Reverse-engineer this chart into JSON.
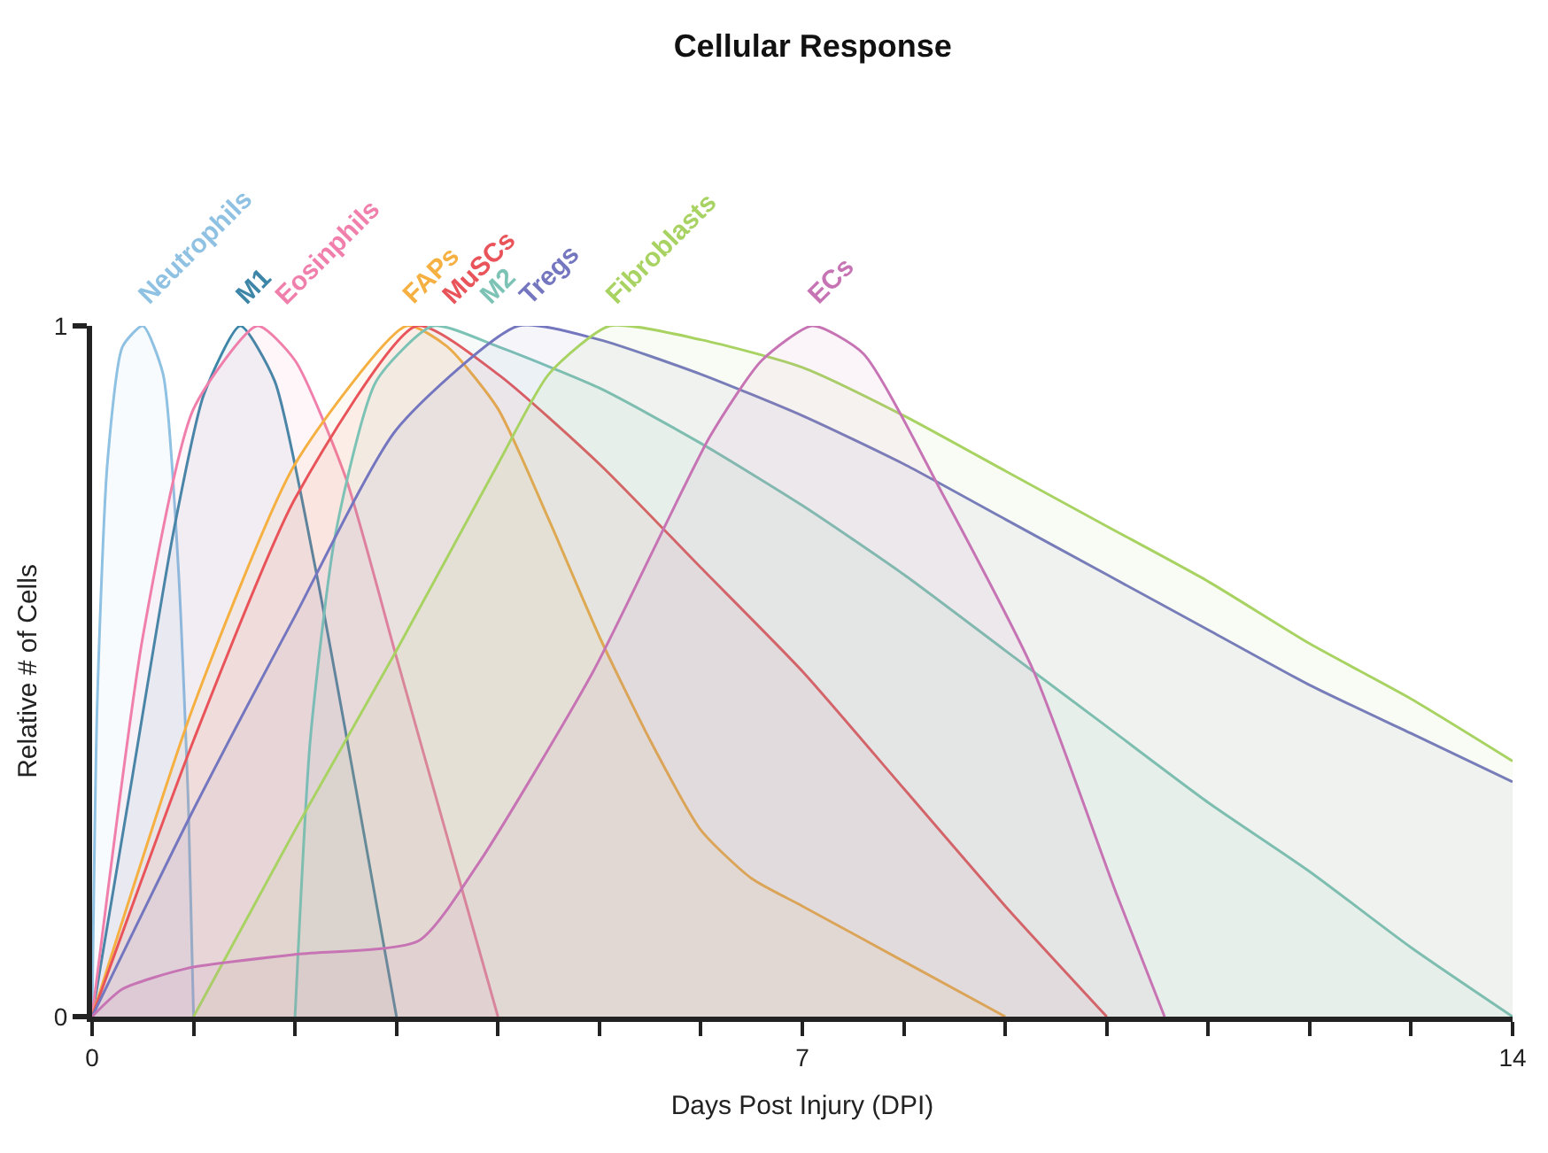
{
  "chart_data": {
    "type": "area",
    "title": "Cellular Response",
    "xlabel": "Days Post Injury (DPI)",
    "ylabel": "Relative # of Cells",
    "xlim": [
      0,
      14
    ],
    "ylim": [
      0,
      1
    ],
    "xticks": [
      0,
      {
        "value": 1,
        "label": null
      },
      {
        "value": 2,
        "label": null
      },
      {
        "value": 3,
        "label": null
      },
      {
        "value": 4,
        "label": null
      },
      {
        "value": 5,
        "label": null
      },
      {
        "value": 6,
        "label": null
      },
      7,
      {
        "value": 8,
        "label": null
      },
      {
        "value": 9,
        "label": null
      },
      {
        "value": 10,
        "label": null
      },
      {
        "value": 11,
        "label": null
      },
      {
        "value": 12,
        "label": null
      },
      {
        "value": 13,
        "label": null
      },
      14
    ],
    "yticks": [
      0,
      1
    ],
    "legend": false,
    "marker": "none",
    "line_style": "solid",
    "series": [
      {
        "name": "Neutrophils",
        "color": "#8fc1e3",
        "x": [
          0,
          0.05,
          0.15,
          0.3,
          0.5,
          0.7,
          0.85,
          0.95,
          1
        ],
        "values": [
          0,
          0.45,
          0.8,
          0.97,
          1,
          0.93,
          0.65,
          0.3,
          0
        ]
      },
      {
        "name": "M1",
        "color": "#3e86a8",
        "x": [
          0,
          0.4,
          0.8,
          1.1,
          1.46,
          1.8,
          2.2,
          2.6,
          3
        ],
        "values": [
          0,
          0.35,
          0.7,
          0.9,
          1,
          0.92,
          0.65,
          0.33,
          0
        ]
      },
      {
        "name": "Eosinphils",
        "color": "#f07fab",
        "x": [
          0,
          0.5,
          1,
          1.63,
          2,
          2.5,
          3,
          3.5,
          4
        ],
        "values": [
          0,
          0.55,
          0.88,
          1,
          0.95,
          0.78,
          0.52,
          0.26,
          0
        ]
      },
      {
        "name": "FAPs",
        "color": "#f5b041",
        "x": [
          0,
          1,
          2,
          3.1,
          3.5,
          4,
          4.5,
          5,
          5.5,
          6,
          6.5,
          7,
          8,
          9
        ],
        "values": [
          0,
          0.45,
          0.8,
          1,
          0.97,
          0.88,
          0.72,
          0.55,
          0.4,
          0.27,
          0.2,
          0.16,
          0.08,
          0
        ]
      },
      {
        "name": "MuSCs",
        "color": "#e8545a",
        "x": [
          0,
          1,
          2,
          3.2,
          4,
          5,
          6,
          7,
          8,
          9,
          10
        ],
        "values": [
          0,
          0.4,
          0.75,
          1,
          0.93,
          0.8,
          0.65,
          0.5,
          0.33,
          0.16,
          0
        ]
      },
      {
        "name": "M2",
        "color": "#7cc3b6",
        "x": [
          2,
          2.15,
          2.4,
          2.8,
          3.36,
          4,
          5,
          6,
          7,
          8,
          9,
          10,
          11,
          12,
          13,
          14
        ],
        "values": [
          0,
          0.4,
          0.7,
          0.92,
          1,
          0.97,
          0.91,
          0.83,
          0.74,
          0.64,
          0.53,
          0.42,
          0.31,
          0.21,
          0.1,
          0
        ]
      },
      {
        "name": "Tregs",
        "color": "#7477bf",
        "x": [
          0,
          1,
          2,
          3,
          4.2,
          5,
          6,
          7,
          8,
          9,
          10,
          11,
          12,
          13,
          14
        ],
        "values": [
          0,
          0.3,
          0.58,
          0.85,
          1,
          0.98,
          0.93,
          0.87,
          0.8,
          0.72,
          0.64,
          0.56,
          0.48,
          0.41,
          0.34
        ]
      },
      {
        "name": "Fibroblasts",
        "color": "#a8d363",
        "x": [
          1,
          2,
          3,
          4,
          4.5,
          5.1,
          6,
          7,
          8,
          9,
          10,
          11,
          12,
          13,
          14
        ],
        "values": [
          0,
          0.27,
          0.53,
          0.8,
          0.93,
          1,
          0.98,
          0.94,
          0.87,
          0.79,
          0.71,
          0.63,
          0.54,
          0.46,
          0.37
        ]
      },
      {
        "name": "ECs",
        "color": "#c774b5",
        "x": [
          0,
          0.3,
          0.94,
          2,
          3.22,
          3.8,
          4.94,
          6.09,
          6.6,
          7.1,
          7.6,
          8.37,
          9.28,
          10.09,
          10.57
        ],
        "values": [
          0,
          0.04,
          0.07,
          0.09,
          0.11,
          0.22,
          0.5,
          0.84,
          0.95,
          1,
          0.96,
          0.76,
          0.5,
          0.18,
          0
        ]
      }
    ]
  }
}
